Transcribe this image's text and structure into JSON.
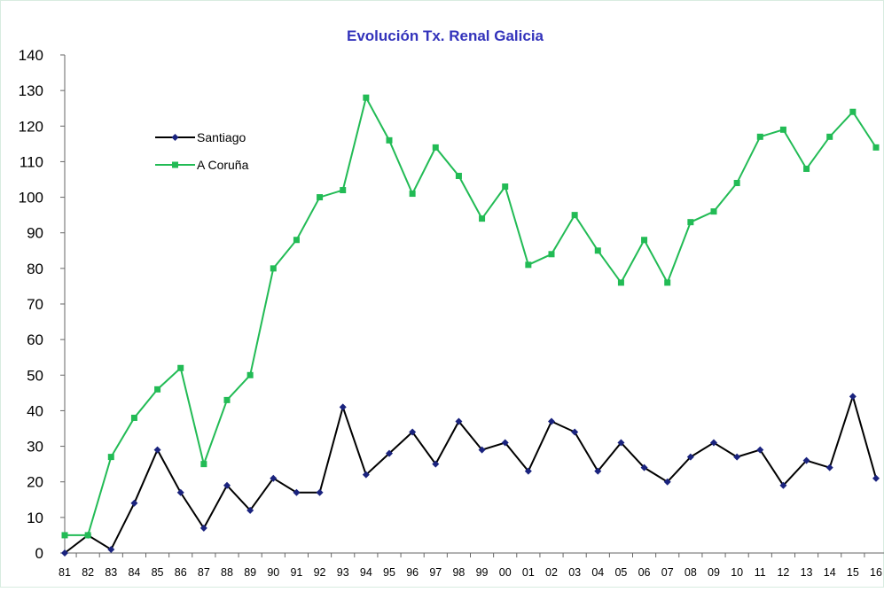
{
  "chart_data": {
    "type": "line",
    "title": "Evolución Tx. Renal Galicia",
    "categories": [
      "81",
      "82",
      "83",
      "84",
      "85",
      "86",
      "87",
      "88",
      "89",
      "90",
      "91",
      "92",
      "93",
      "94",
      "95",
      "96",
      "97",
      "98",
      "99",
      "00",
      "01",
      "02",
      "03",
      "04",
      "05",
      "06",
      "07",
      "08",
      "09",
      "10",
      "11",
      "12",
      "13",
      "14",
      "15",
      "16"
    ],
    "series": [
      {
        "name": "Santiago",
        "color": "#000000",
        "marker_color": "#1a237e",
        "marker": "diamond",
        "values": [
          0,
          5,
          1,
          14,
          29,
          17,
          7,
          19,
          12,
          21,
          17,
          17,
          41,
          22,
          28,
          34,
          25,
          37,
          29,
          31,
          23,
          37,
          34,
          23,
          31,
          24,
          20,
          27,
          31,
          27,
          29,
          19,
          26,
          24,
          44,
          21
        ]
      },
      {
        "name": "A Coruña",
        "color": "#22bb55",
        "marker_color": "#22bb55",
        "marker": "square",
        "values": [
          5,
          5,
          27,
          38,
          46,
          52,
          25,
          43,
          50,
          80,
          88,
          100,
          102,
          128,
          116,
          101,
          114,
          106,
          94,
          103,
          81,
          84,
          95,
          85,
          76,
          88,
          76,
          93,
          96,
          104,
          117,
          119,
          108,
          117,
          124,
          114
        ]
      }
    ],
    "ylim": [
      0,
      140
    ],
    "yticks": [
      0,
      10,
      20,
      30,
      40,
      50,
      60,
      70,
      80,
      90,
      100,
      110,
      120,
      130,
      140
    ],
    "grid": false,
    "legend": "upper-left"
  }
}
